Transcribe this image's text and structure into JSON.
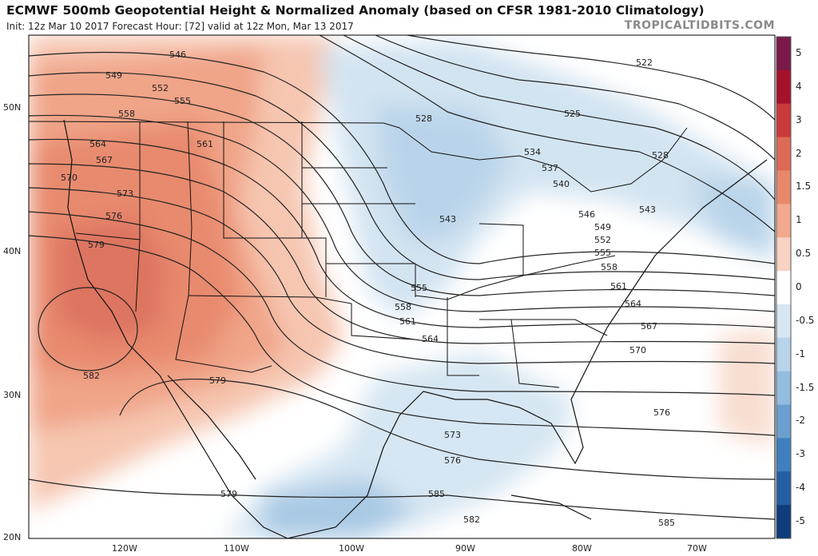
{
  "header": {
    "title": "ECMWF 500mb Geopotential Height & Normalized Anomaly (based on CFSR 1981-2010 Climatology)",
    "subtitle": "Init: 12z Mar 10 2017   Forecast Hour: [72]   valid at 12z Mon, Mar 13 2017",
    "credit": "TROPICALTIDBITS.COM"
  },
  "map": {
    "lat_labels": [
      "50N",
      "40N",
      "30N",
      "20N"
    ],
    "lon_labels": [
      "120W",
      "110W",
      "100W",
      "90W",
      "80W",
      "70W"
    ],
    "contour_labels": [
      "546",
      "549",
      "552",
      "555",
      "558",
      "561",
      "564",
      "567",
      "570",
      "573",
      "576",
      "579",
      "582",
      "522",
      "525",
      "528",
      "528",
      "534",
      "537",
      "540",
      "543",
      "543",
      "546",
      "549",
      "552",
      "555",
      "558",
      "561",
      "564",
      "567",
      "570",
      "576",
      "579",
      "579",
      "573",
      "576",
      "582",
      "585",
      "555",
      "558",
      "561",
      "564"
    ]
  },
  "colorbar": {
    "labels": [
      "5",
      "4",
      "3",
      "2",
      "1.5",
      "1",
      "0.5",
      "0",
      "-0.5",
      "-1",
      "-1.5",
      "-2",
      "-3",
      "-4",
      "-5"
    ],
    "colors": [
      "#7b1a4a",
      "#a5122a",
      "#c93a3a",
      "#dd6a55",
      "#e8886b",
      "#f2a98e",
      "#f8d2c2",
      "#ffffff",
      "#d6e6f2",
      "#b8d4ea",
      "#93bde0",
      "#6a9fcf",
      "#3f7fbf",
      "#235ea3",
      "#0f3c7a"
    ]
  }
}
